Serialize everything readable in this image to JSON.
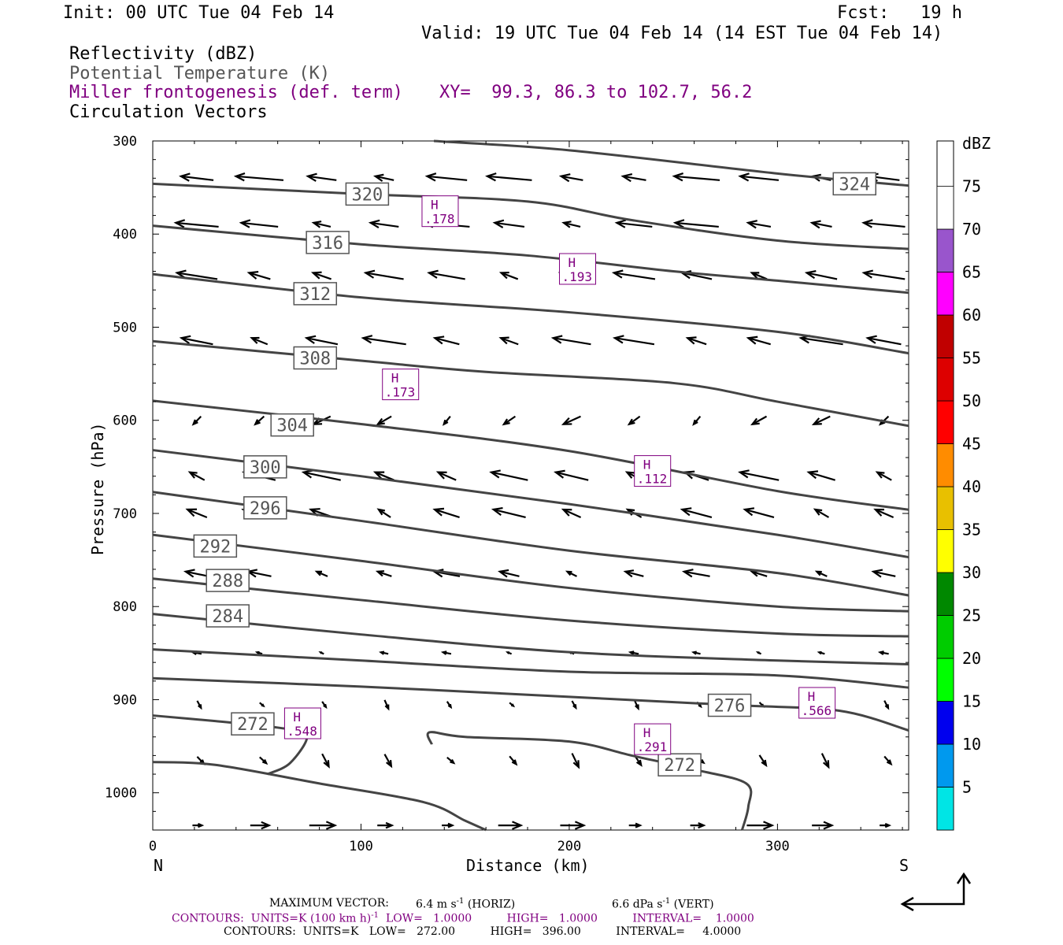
{
  "header": {
    "init": "Init: 00 UTC Tue 04 Feb 14",
    "fcst": "Fcst:   19 h",
    "valid": "Valid: 19 UTC Tue 04 Feb 14 (14 EST Tue 04 Feb 14)"
  },
  "fields": {
    "reflectivity": "Reflectivity (dBZ)",
    "theta": "Potential Temperature (K)",
    "miller": "Miller frontogenesis (def. term)",
    "xy": "XY=  99.3, 86.3 to 102.7, 56.2",
    "vectors": "Circulation Vectors"
  },
  "axes": {
    "ylabel": "Pressure (hPa)",
    "xlabel": "Distance (km)",
    "left_end": "N",
    "right_end": "S"
  },
  "colorbar": {
    "title": "dBZ",
    "levels": [
      "5",
      "10",
      "15",
      "20",
      "25",
      "30",
      "35",
      "40",
      "45",
      "50",
      "55",
      "60",
      "65",
      "70",
      "75"
    ],
    "colors": [
      "#00e5e5",
      "#0099ee",
      "#0000ee",
      "#00ff00",
      "#00cc00",
      "#008800",
      "#ffff00",
      "#e8c000",
      "#ff8c00",
      "#ff0000",
      "#dd0000",
      "#c00000",
      "#ff00ff",
      "#9955cc",
      "#ffffff"
    ]
  },
  "footer": {
    "max_vector_label": "MAXIMUM VECTOR:",
    "max_horiz": "6.4 m s",
    "max_horiz_exp": "-1",
    "max_horiz_tag": "(HORIZ)",
    "max_vert": "6.6 dPa s",
    "max_vert_exp": "-1",
    "max_vert_tag": "(VERT)",
    "contours1_a": "CONTOURS:  UNITS=K (100 km h)",
    "contours1_exp": "-1",
    "contours1_b": "LOW=   1.0000          HIGH=   1.0000          INTERVAL=    1.0000",
    "contours2": "CONTOURS:  UNITS=K   LOW=   272.00          HIGH=   396.00          INTERVAL=     4.0000"
  },
  "chart_data": {
    "type": "contour",
    "x_axis": {
      "label": "Distance (km)",
      "range": [
        0,
        363
      ],
      "ticks": [
        0,
        100,
        200,
        300
      ]
    },
    "y_axis": {
      "label": "Pressure (hPa)",
      "range": [
        300,
        1040
      ],
      "inverted": true,
      "ticks": [
        300,
        400,
        500,
        600,
        700,
        800,
        900,
        1000
      ]
    },
    "theta_contours": [
      {
        "level": 324,
        "label": "324",
        "points": [
          [
            135,
            300
          ],
          [
            200,
            310
          ],
          [
            300,
            335
          ],
          [
            363,
            348
          ]
        ],
        "label_at": [
          337,
          346
        ]
      },
      {
        "level": 320,
        "label": "320",
        "points": [
          [
            0,
            346
          ],
          [
            100,
            357
          ],
          [
            180,
            365
          ],
          [
            230,
            385
          ],
          [
            300,
            407
          ],
          [
            363,
            416
          ]
        ],
        "label_at": [
          103,
          357
        ]
      },
      {
        "level": 316,
        "label": "316",
        "points": [
          [
            0,
            391
          ],
          [
            100,
            411
          ],
          [
            180,
            423
          ],
          [
            250,
            440
          ],
          [
            300,
            450
          ],
          [
            363,
            463
          ]
        ],
        "label_at": [
          84,
          409
        ]
      },
      {
        "level": 312,
        "label": "312",
        "points": [
          [
            0,
            443
          ],
          [
            100,
            468
          ],
          [
            200,
            484
          ],
          [
            300,
            505
          ],
          [
            363,
            528
          ]
        ],
        "label_at": [
          78,
          464
        ]
      },
      {
        "level": 308,
        "label": "308",
        "points": [
          [
            0,
            515
          ],
          [
            100,
            536
          ],
          [
            160,
            548
          ],
          [
            250,
            560
          ],
          [
            300,
            580
          ],
          [
            363,
            606
          ]
        ],
        "label_at": [
          78,
          533
        ]
      },
      {
        "level": 304,
        "label": "304",
        "points": [
          [
            0,
            579
          ],
          [
            100,
            604
          ],
          [
            200,
            633
          ],
          [
            300,
            676
          ],
          [
            363,
            696
          ]
        ],
        "label_at": [
          67,
          605
        ]
      },
      {
        "level": 300,
        "label": "300",
        "points": [
          [
            0,
            632
          ],
          [
            100,
            660
          ],
          [
            200,
            690
          ],
          [
            300,
            723
          ],
          [
            363,
            747
          ]
        ],
        "label_at": [
          54,
          650
        ]
      },
      {
        "level": 296,
        "label": "296",
        "points": [
          [
            0,
            677
          ],
          [
            100,
            708
          ],
          [
            200,
            740
          ],
          [
            300,
            764
          ],
          [
            363,
            788
          ]
        ],
        "label_at": [
          54,
          694
        ]
      },
      {
        "level": 292,
        "label": "292",
        "points": [
          [
            0,
            723
          ],
          [
            100,
            751
          ],
          [
            200,
            780
          ],
          [
            300,
            800
          ],
          [
            363,
            805
          ]
        ],
        "label_at": [
          30,
          735
        ]
      },
      {
        "level": 288,
        "label": "288",
        "points": [
          [
            0,
            770
          ],
          [
            100,
            793
          ],
          [
            200,
            815
          ],
          [
            300,
            829
          ],
          [
            363,
            832
          ]
        ],
        "label_at": [
          36,
          772
        ]
      },
      {
        "level": 284,
        "label": "284",
        "points": [
          [
            0,
            808
          ],
          [
            100,
            830
          ],
          [
            200,
            849
          ],
          [
            300,
            858
          ],
          [
            363,
            862
          ]
        ],
        "label_at": [
          36,
          810
        ]
      },
      {
        "level": 280,
        "label": "",
        "points": [
          [
            0,
            846
          ],
          [
            100,
            858
          ],
          [
            200,
            870
          ],
          [
            300,
            874
          ],
          [
            363,
            887
          ]
        ],
        "label_at": null
      },
      {
        "level": 276,
        "label": "276",
        "points": [
          [
            0,
            877
          ],
          [
            100,
            886
          ],
          [
            200,
            897
          ],
          [
            280,
            906
          ],
          [
            330,
            912
          ],
          [
            363,
            933
          ]
        ],
        "label_at": [
          277,
          906
        ]
      },
      {
        "level": 272,
        "label": "272",
        "points": [
          [
            0,
            917
          ],
          [
            30,
            923
          ],
          [
            60,
            930
          ],
          [
            74,
            938
          ],
          [
            66,
            968
          ],
          [
            55,
            980
          ]
        ],
        "label_at": [
          48,
          926
        ]
      },
      {
        "level": 272,
        "label": "272",
        "points": [
          [
            134,
            948
          ],
          [
            133,
            935
          ],
          [
            150,
            940
          ],
          [
            200,
            945
          ],
          [
            230,
            960
          ],
          [
            260,
            975
          ],
          [
            285,
            990
          ],
          [
            286,
            1015
          ],
          [
            283,
            1040
          ]
        ],
        "label_at": [
          253,
          970
        ]
      },
      {
        "level": 272,
        "label": "",
        "points": [
          [
            0,
            967
          ],
          [
            30,
            970
          ],
          [
            80,
            990
          ],
          [
            130,
            1010
          ],
          [
            150,
            1030
          ],
          [
            160,
            1040
          ]
        ],
        "label_at": null
      }
    ],
    "frontogenesis_highs": [
      {
        "label": "H",
        "value": ".178",
        "at": [
          138,
          375
        ]
      },
      {
        "label": "H",
        "value": ".193",
        "at": [
          204,
          437
        ]
      },
      {
        "label": "H",
        "value": ".173",
        "at": [
          119,
          561
        ]
      },
      {
        "label": "H",
        "value": ".112",
        "at": [
          240,
          654
        ]
      },
      {
        "label": "H",
        "value": ".548",
        "at": [
          72,
          925
        ]
      },
      {
        "label": "H",
        "value": ".291",
        "at": [
          240,
          942
        ]
      },
      {
        "label": "H",
        "value": ".566",
        "at": [
          319,
          903
        ]
      }
    ],
    "wind_vectors_max": {
      "horizontal": "6.4 m s-1",
      "vertical": "6.6 dPa s-1"
    }
  }
}
